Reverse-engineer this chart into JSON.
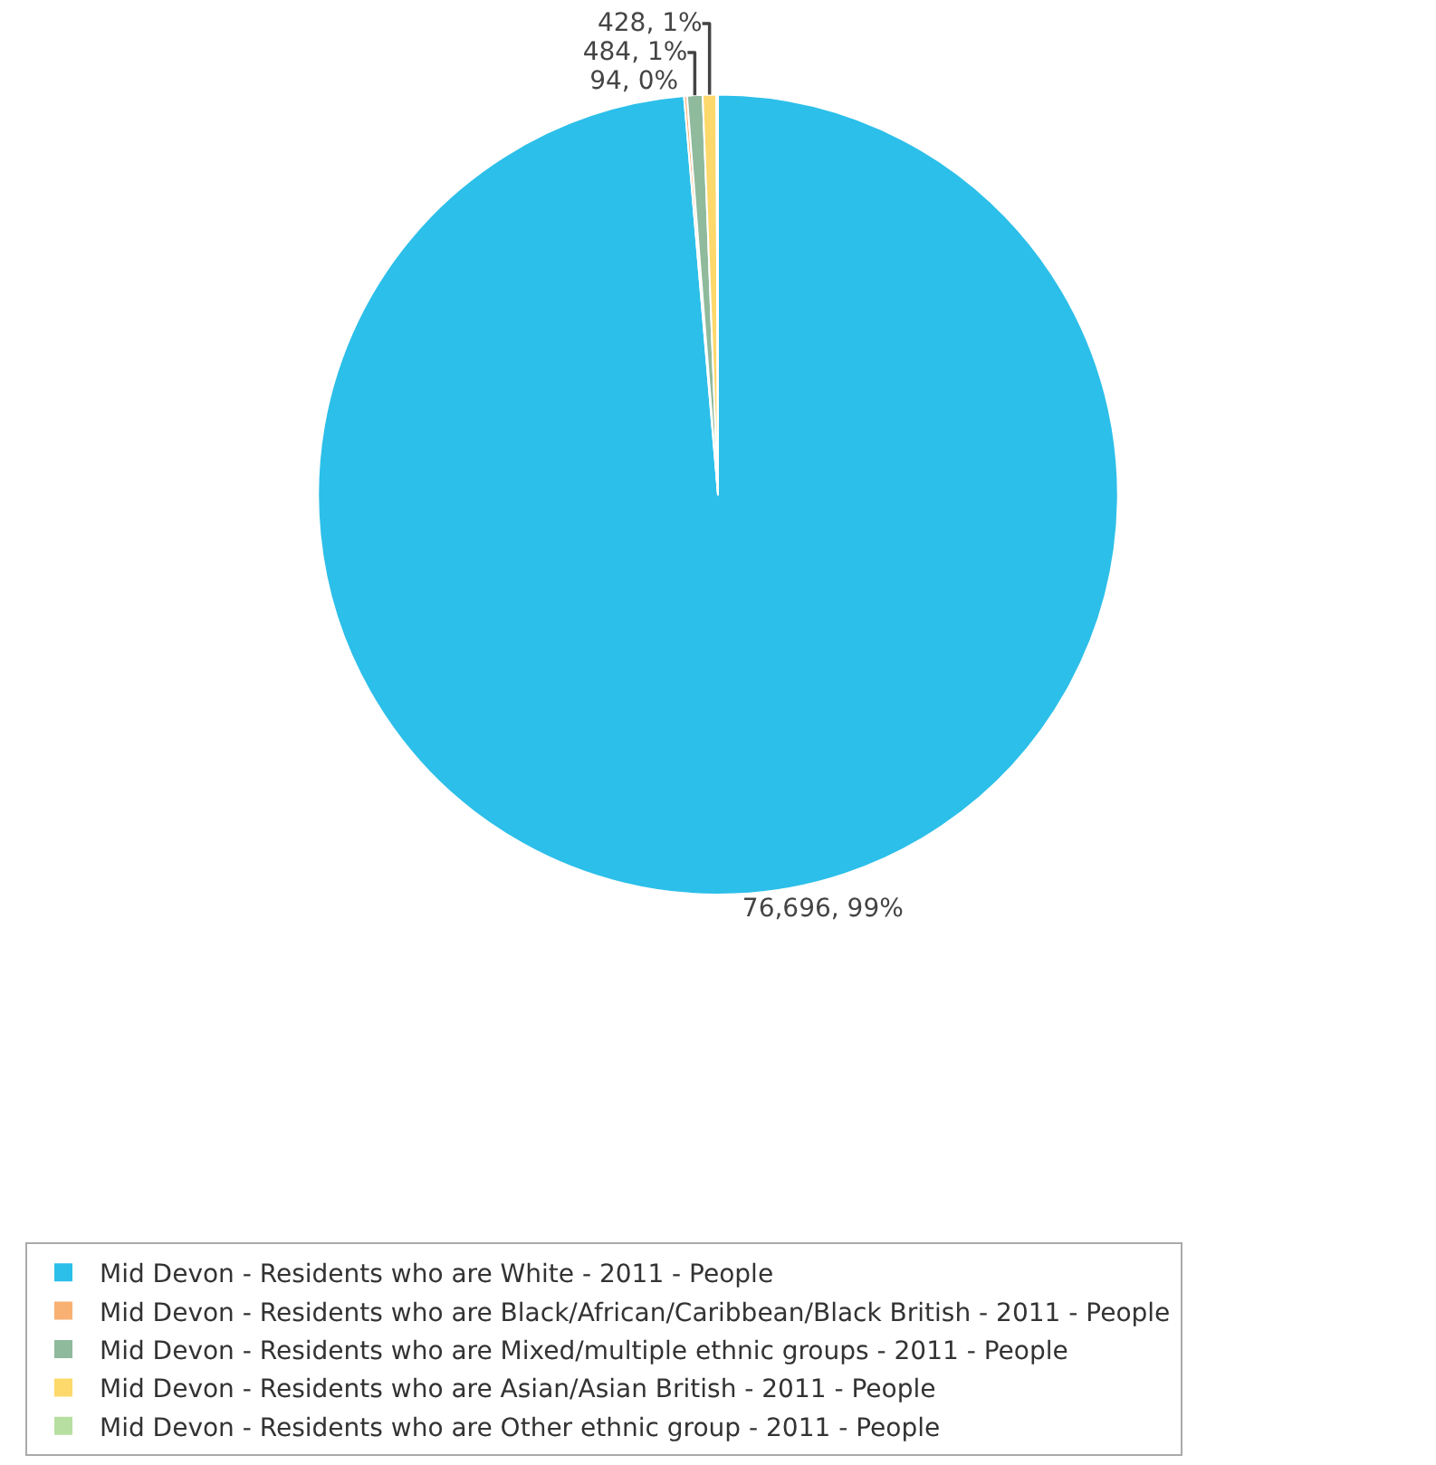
{
  "chart_data": {
    "type": "pie",
    "categories": [
      "Mid Devon - Residents who are White - 2011 - People",
      "Mid Devon - Residents who are Black/African/Caribbean/Black British - 2011 - People",
      "Mid Devon - Residents who are Mixed/multiple ethnic groups - 2011 - People",
      "Mid Devon - Residents who are Asian/Asian British - 2011 - People",
      "Mid Devon - Residents who are Other ethnic group - 2011 - People"
    ],
    "values": [
      76696,
      94,
      484,
      428,
      48
    ],
    "value_labels": [
      "76,696, 99%",
      "94, 0%",
      "484, 1%",
      "428, 1%",
      null
    ],
    "colors": [
      "#2cbfe9",
      "#f9b073",
      "#8fba9c",
      "#fdd86b",
      "#b6dfa1"
    ],
    "legend": "bottom"
  }
}
